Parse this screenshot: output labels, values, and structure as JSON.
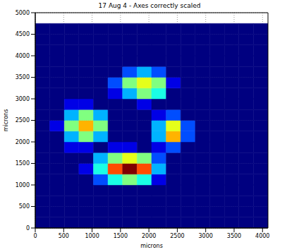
{
  "chart_data": {
    "type": "heatmap",
    "title": "17 Aug 4 - Axes correctly scaled",
    "x_label": "microns",
    "y_label": "microns",
    "xlim": [
      0,
      4096
    ],
    "ylim": [
      0,
      5000
    ],
    "xticks": [
      0,
      500,
      1000,
      1500,
      2000,
      2500,
      3000,
      3500,
      4000
    ],
    "yticks": [
      0,
      500,
      1000,
      1500,
      2000,
      2500,
      3000,
      3500,
      4000,
      4500,
      5000
    ],
    "grid": true,
    "zlim": [
      0,
      10
    ],
    "x_bins": [
      0,
      256,
      512,
      768,
      1024,
      1280,
      1536,
      1792,
      2048,
      2304,
      2560,
      2816,
      3072,
      3328,
      3584,
      3840,
      4096
    ],
    "y_bins": [
      0,
      250,
      500,
      750,
      1000,
      1250,
      1500,
      1750,
      2000,
      2250,
      2500,
      2750,
      3000,
      3250,
      3500,
      3750,
      4000,
      4250,
      4500,
      4750
    ],
    "cells": [
      [
        0,
        0,
        0,
        0,
        0,
        0,
        0,
        0,
        0,
        0,
        0,
        0,
        0,
        0,
        0,
        0
      ],
      [
        0,
        0,
        0,
        0,
        0,
        0,
        0,
        0,
        0,
        0,
        0,
        0,
        0,
        0,
        0,
        0
      ],
      [
        0,
        0,
        0,
        0,
        0,
        0,
        0,
        0,
        0,
        0,
        0,
        0,
        0,
        0,
        0,
        0
      ],
      [
        0,
        0,
        0,
        0,
        0,
        0,
        0,
        0,
        0,
        0,
        0,
        0,
        0,
        0,
        0,
        0
      ],
      [
        0,
        0,
        0,
        0,
        2,
        4,
        5,
        4,
        1,
        0,
        0,
        0,
        0,
        0,
        0,
        0
      ],
      [
        0,
        0,
        0,
        1,
        4,
        8,
        10,
        8,
        3,
        0,
        0,
        0,
        0,
        0,
        0,
        0
      ],
      [
        0,
        0,
        0,
        0,
        3,
        5,
        6,
        5,
        2,
        0,
        0,
        0,
        0,
        0,
        0,
        0
      ],
      [
        0,
        0,
        1,
        1,
        0,
        1,
        1,
        0,
        1,
        2,
        0,
        0,
        0,
        0,
        0,
        0
      ],
      [
        0,
        0,
        3,
        5,
        3,
        0,
        0,
        0,
        3,
        7,
        2,
        0,
        0,
        0,
        0,
        0
      ],
      [
        0,
        1,
        5,
        7,
        5,
        0,
        0,
        0,
        3,
        6,
        2,
        0,
        0,
        0,
        0,
        0
      ],
      [
        0,
        0,
        3,
        5,
        3,
        0,
        0,
        0,
        1,
        2,
        0,
        0,
        0,
        0,
        0,
        0
      ],
      [
        0,
        0,
        1,
        1,
        0,
        0,
        0,
        1,
        0,
        0,
        0,
        0,
        0,
        0,
        0,
        0
      ],
      [
        0,
        0,
        0,
        0,
        0,
        1,
        3,
        5,
        4,
        0,
        0,
        0,
        0,
        0,
        0,
        0
      ],
      [
        0,
        0,
        0,
        0,
        0,
        2,
        5,
        6,
        5,
        1,
        0,
        0,
        0,
        0,
        0,
        0
      ],
      [
        0,
        0,
        0,
        0,
        0,
        0,
        2,
        3,
        2,
        0,
        0,
        0,
        0,
        0,
        0,
        0
      ],
      [
        0,
        0,
        0,
        0,
        0,
        0,
        0,
        0,
        0,
        0,
        0,
        0,
        0,
        0,
        0,
        0
      ],
      [
        0,
        0,
        0,
        0,
        0,
        0,
        0,
        0,
        0,
        0,
        0,
        0,
        0,
        0,
        0,
        0
      ],
      [
        0,
        0,
        0,
        0,
        0,
        0,
        0,
        0,
        0,
        0,
        0,
        0,
        0,
        0,
        0,
        0
      ],
      [
        0,
        0,
        0,
        0,
        0,
        0,
        0,
        0,
        0,
        0,
        0,
        0,
        0,
        0,
        0,
        0
      ]
    ]
  }
}
